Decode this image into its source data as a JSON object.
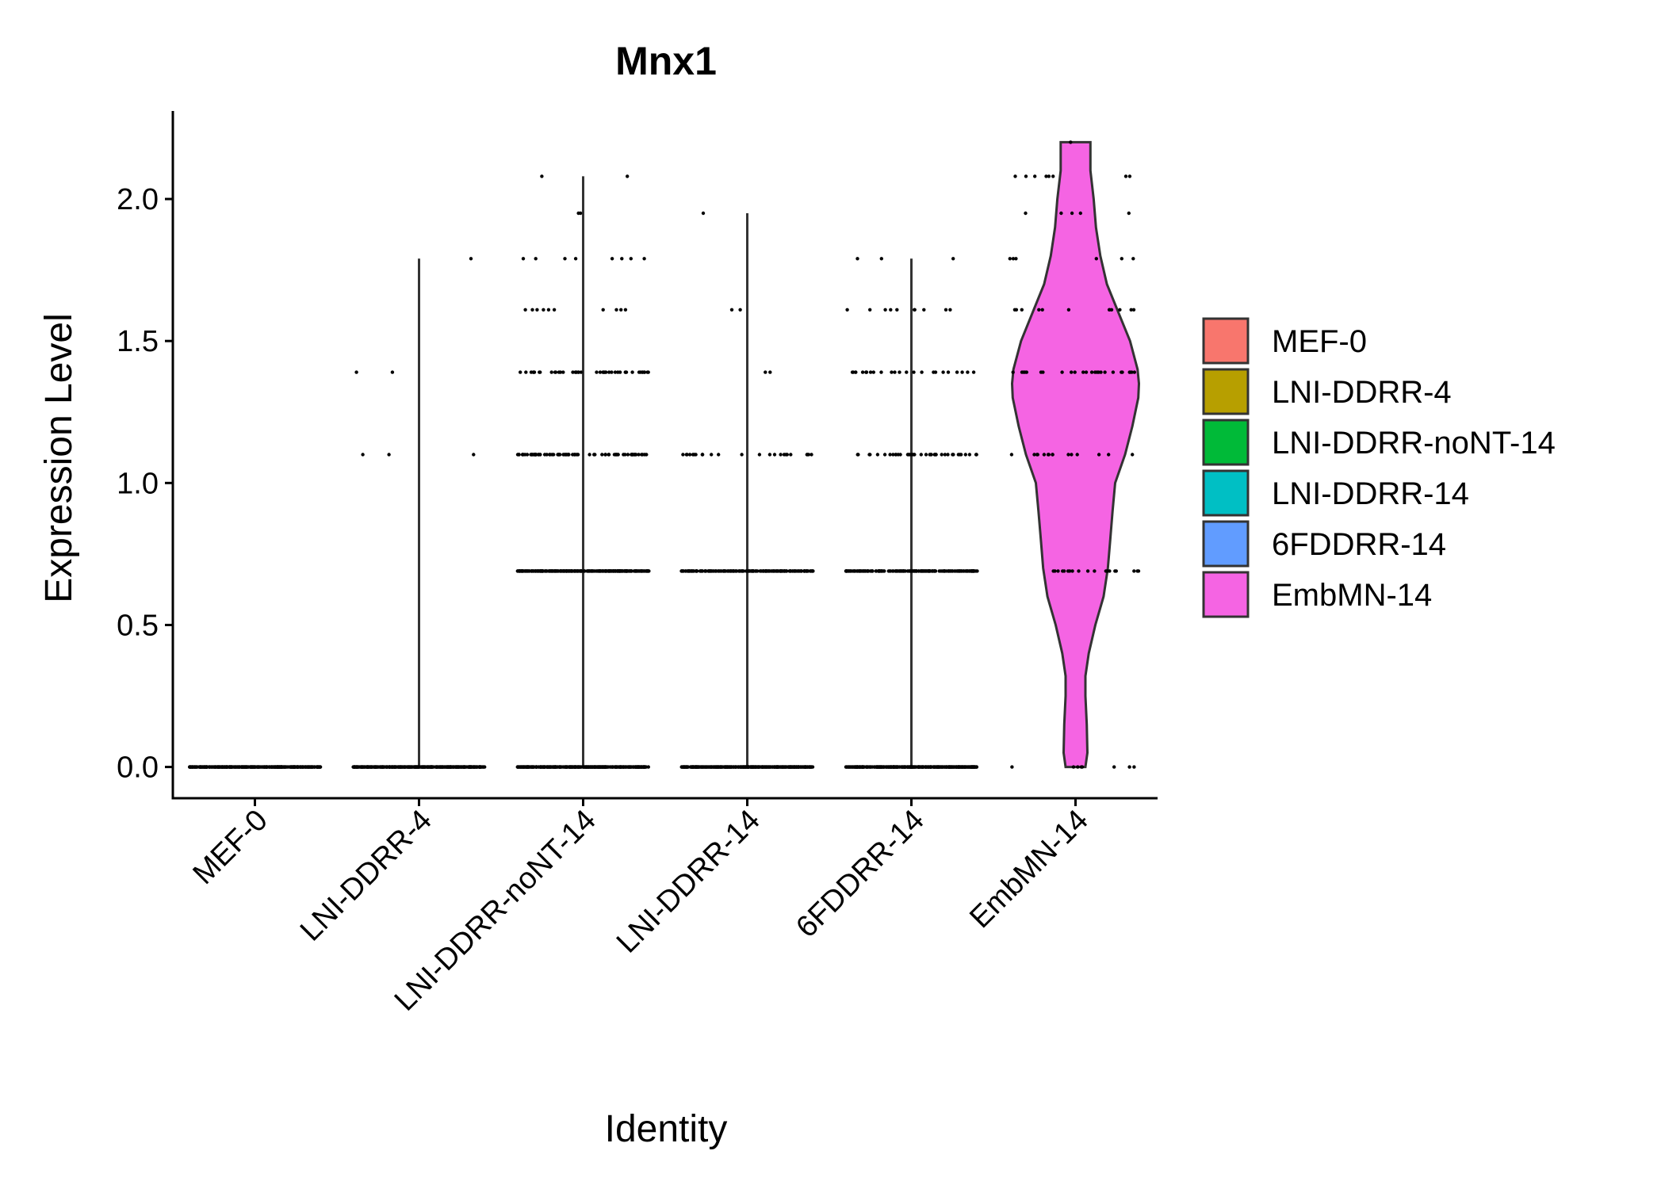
{
  "chart_data": {
    "type": "violin",
    "title": "Mnx1",
    "xlabel": "Identity",
    "ylabel": "Expression Level",
    "ylim": [
      -0.11,
      2.31
    ],
    "yticks": [
      0.0,
      0.5,
      1.0,
      1.5,
      2.0
    ],
    "ytick_labels": [
      "0.0",
      "0.5",
      "1.0",
      "1.5",
      "2.0"
    ],
    "categories": [
      "MEF-0",
      "LNI-DDRR-4",
      "LNI-DDRR-noNT-14",
      "LNI-DDRR-14",
      "6FDDRR-14",
      "EmbMN-14"
    ],
    "colors": [
      "#F8766D",
      "#B79F00",
      "#00BA38",
      "#00BFC4",
      "#619CFF",
      "#F564E3"
    ],
    "legend": {
      "position": "right",
      "entries": [
        "MEF-0",
        "LNI-DDRR-4",
        "LNI-DDRR-noNT-14",
        "LNI-DDRR-14",
        "6FDDRR-14",
        "EmbMN-14"
      ]
    },
    "grid": false,
    "series": [
      {
        "name": "MEF-0",
        "max": 0.0,
        "point_levels": [
          {
            "y": 0.0,
            "count": 400
          }
        ]
      },
      {
        "name": "LNI-DDRR-4",
        "max": 1.79,
        "point_levels": [
          {
            "y": 0.0,
            "count": 400
          },
          {
            "y": 1.1,
            "count": 3
          },
          {
            "y": 1.39,
            "count": 2
          },
          {
            "y": 1.79,
            "count": 1
          }
        ]
      },
      {
        "name": "LNI-DDRR-noNT-14",
        "max": 2.08,
        "point_levels": [
          {
            "y": 0.0,
            "count": 400
          },
          {
            "y": 0.69,
            "count": 300
          },
          {
            "y": 1.1,
            "count": 80
          },
          {
            "y": 1.39,
            "count": 45
          },
          {
            "y": 1.61,
            "count": 10
          },
          {
            "y": 1.79,
            "count": 8
          },
          {
            "y": 1.95,
            "count": 2
          },
          {
            "y": 2.08,
            "count": 2
          }
        ]
      },
      {
        "name": "LNI-DDRR-14",
        "max": 1.95,
        "point_levels": [
          {
            "y": 0.0,
            "count": 400
          },
          {
            "y": 0.69,
            "count": 200
          },
          {
            "y": 1.1,
            "count": 25
          },
          {
            "y": 1.39,
            "count": 2
          },
          {
            "y": 1.61,
            "count": 2
          },
          {
            "y": 1.95,
            "count": 1
          }
        ]
      },
      {
        "name": "6FDDRR-14",
        "max": 1.79,
        "point_levels": [
          {
            "y": 0.0,
            "count": 400
          },
          {
            "y": 0.69,
            "count": 200
          },
          {
            "y": 1.1,
            "count": 40
          },
          {
            "y": 1.39,
            "count": 25
          },
          {
            "y": 1.61,
            "count": 10
          },
          {
            "y": 1.79,
            "count": 3
          }
        ]
      },
      {
        "name": "EmbMN-14",
        "max": 2.2,
        "violin_profile": [
          [
            0.0,
            0.3
          ],
          [
            0.05,
            0.36
          ],
          [
            0.15,
            0.34
          ],
          [
            0.25,
            0.3
          ],
          [
            0.32,
            0.3
          ],
          [
            0.4,
            0.4
          ],
          [
            0.5,
            0.6
          ],
          [
            0.6,
            0.85
          ],
          [
            0.7,
            0.98
          ],
          [
            0.8,
            1.05
          ],
          [
            0.9,
            1.12
          ],
          [
            1.0,
            1.2
          ],
          [
            1.1,
            1.5
          ],
          [
            1.2,
            1.72
          ],
          [
            1.3,
            1.9
          ],
          [
            1.35,
            1.92
          ],
          [
            1.4,
            1.88
          ],
          [
            1.5,
            1.65
          ],
          [
            1.6,
            1.3
          ],
          [
            1.7,
            0.95
          ],
          [
            1.8,
            0.75
          ],
          [
            1.9,
            0.62
          ],
          [
            2.0,
            0.55
          ],
          [
            2.1,
            0.45
          ],
          [
            2.2,
            0.45
          ]
        ],
        "point_levels": [
          {
            "y": 0.0,
            "count": 8
          },
          {
            "y": 0.69,
            "count": 20
          },
          {
            "y": 1.1,
            "count": 15
          },
          {
            "y": 1.39,
            "count": 25
          },
          {
            "y": 1.61,
            "count": 12
          },
          {
            "y": 1.79,
            "count": 6
          },
          {
            "y": 1.95,
            "count": 5
          },
          {
            "y": 2.08,
            "count": 8
          },
          {
            "y": 2.2,
            "count": 1
          }
        ]
      }
    ]
  }
}
